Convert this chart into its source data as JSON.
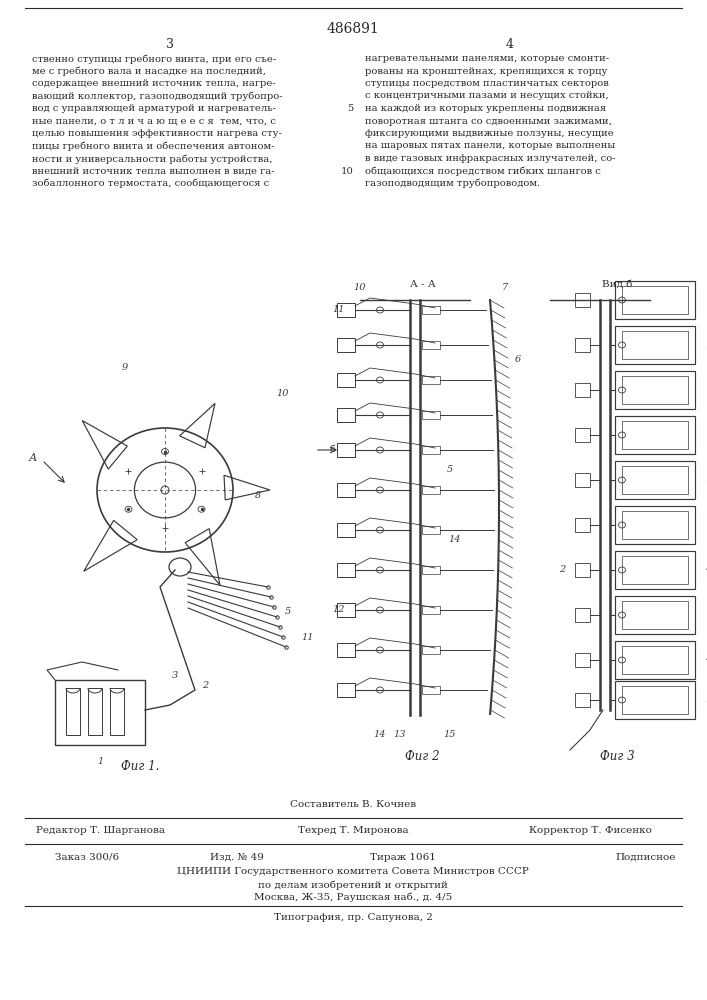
{
  "patent_number": "486891",
  "page_numbers": [
    "3",
    "4"
  ],
  "col1_text_lines": [
    "ственно ступицы гребного винта, при его съе-",
    "ме с гребного вала и насадке на последний,",
    "содержащее внешний источник тепла, нагре-",
    "вающий коллектор, газоподводящий трубопро-",
    "вод с управляющей арматурой и нагреватель-",
    "ные панели, о т л и ч а ю щ е е с я  тем, что, с",
    "целью повышения эффективности нагрева сту-",
    "пицы гребного винта и обеспечения автоном-",
    "ности и универсальности работы устройства,",
    "внешний источник тепла выполнен в виде га-",
    "зобаллонного термостата, сообщающегося с"
  ],
  "col2_text_lines": [
    "нагревательными панелями, которые смонти-",
    "рованы на кронштейнах, крепящихся к торцу",
    "ступицы посредством пластинчатых секторов",
    "с концентричными пазами и несущих стойки,",
    "на каждой из которых укреплены подвижная",
    "поворотная штанга со сдвоенными зажимами,",
    "фиксирующими выдвижные ползуны, несущие",
    "на шаровых пятах панели, которые выполнены",
    "в виде газовых инфракрасных излучателей, со-",
    "общающихся посредством гибких шлангов с",
    "газоподводящим трубопроводом."
  ],
  "line_numbers_col2": {
    "5": 5,
    "10": 10
  },
  "fig1_label": "Фиг 1.",
  "fig2_label": "Фиг 2",
  "fig3_label": "Фиг 3",
  "composer_label": "Составитель В. Кочнев",
  "editor_label": "Редактор Т. Шарганова",
  "techred_label": "Техред Т. Миронова",
  "corrector_label": "Корректор Т. Фисенко",
  "order_label": "Заказ 300/6",
  "izd_label": "Изд. № 49",
  "tirazh_label": "Тираж 1061",
  "podpisnoe_label": "Подписное",
  "cniipи_label": "ЦНИИПИ Государственного комитета Совета Министров СССР",
  "cniipи2_label": "по делам изобретений и открытий",
  "moscow_label": "Москва, Ж-35, Раушская наб., д. 4/5",
  "typography_label": "Типография, пр. Сапунова, 2",
  "bg_color": "#ffffff",
  "text_color": "#2a2a2a",
  "line_color": "#2a2a2a",
  "drawing_color": "#3a3a3a"
}
